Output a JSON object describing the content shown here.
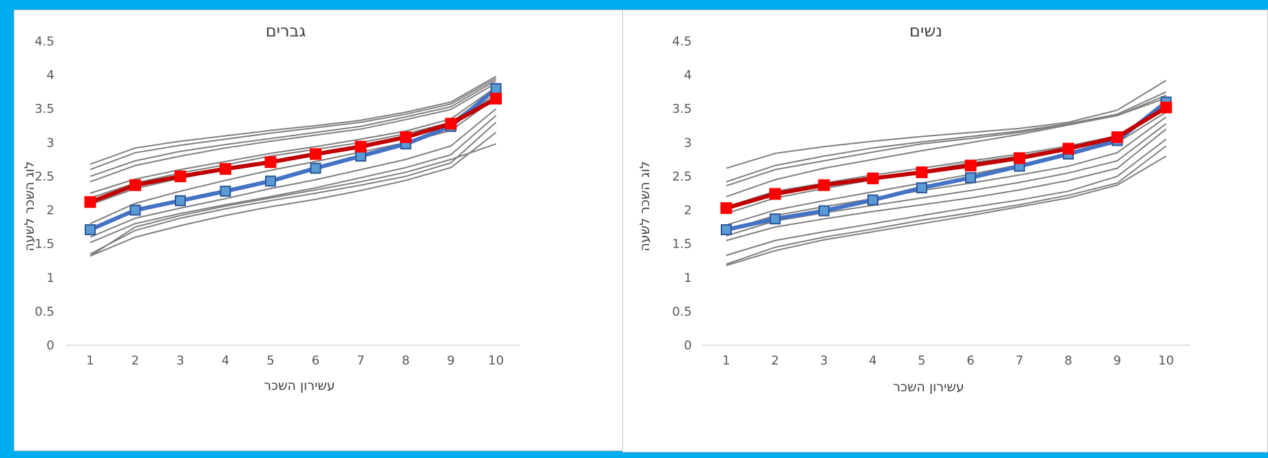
{
  "colors": {
    "background_frame": "#00AEEF",
    "panel_background": "#FFFFFF",
    "gray_lines": "#7F7F7F",
    "red_series": "#C00000",
    "red_marker": "#FF0000",
    "blue_series": "#4472C4",
    "blue_marker": "#5B9BD5"
  },
  "chart_data": [
    {
      "type": "line",
      "title": "גברים",
      "xlabel": "עשירון השכר",
      "ylabel": "לוג השכר לשעה",
      "x": [
        1,
        2,
        3,
        4,
        5,
        6,
        7,
        8,
        9,
        10
      ],
      "ylim": [
        0,
        4.5
      ],
      "yticks": [
        "0",
        "0.5",
        "1",
        "1.5",
        "2",
        "2.5",
        "3",
        "3.5",
        "4",
        "4.5"
      ],
      "xticks": [
        "1",
        "2",
        "3",
        "4",
        "5",
        "6",
        "7",
        "8",
        "9",
        "10"
      ],
      "grid": false,
      "legend": "none",
      "background_series": [
        [
          2.68,
          2.92,
          3.02,
          3.1,
          3.18,
          3.25,
          3.33,
          3.45,
          3.6,
          3.98
        ],
        [
          2.6,
          2.85,
          2.96,
          3.05,
          3.14,
          3.22,
          3.3,
          3.42,
          3.57,
          3.95
        ],
        [
          2.5,
          2.73,
          2.87,
          2.97,
          3.06,
          3.15,
          3.24,
          3.38,
          3.53,
          3.92
        ],
        [
          2.42,
          2.66,
          2.8,
          2.92,
          3.02,
          3.11,
          3.2,
          3.34,
          3.49,
          3.88
        ],
        [
          2.25,
          2.46,
          2.6,
          2.72,
          2.84,
          2.94,
          3.05,
          3.17,
          3.35,
          3.82
        ],
        [
          2.18,
          2.4,
          2.55,
          2.67,
          2.8,
          2.9,
          3.0,
          3.13,
          3.3,
          3.78
        ],
        [
          2.08,
          2.32,
          2.47,
          2.6,
          2.72,
          2.83,
          2.95,
          3.08,
          3.25,
          3.72
        ],
        [
          1.8,
          2.1,
          2.28,
          2.44,
          2.59,
          2.72,
          2.86,
          3.0,
          3.18,
          3.66
        ],
        [
          1.6,
          1.88,
          2.03,
          2.17,
          2.32,
          2.45,
          2.6,
          2.75,
          2.95,
          3.5
        ],
        [
          1.52,
          1.8,
          1.95,
          2.08,
          2.2,
          2.33,
          2.48,
          2.63,
          2.82,
          3.4
        ],
        [
          1.35,
          1.7,
          1.88,
          2.02,
          2.14,
          2.25,
          2.37,
          2.5,
          2.7,
          3.3
        ],
        [
          1.32,
          1.6,
          1.77,
          1.92,
          2.05,
          2.16,
          2.29,
          2.44,
          2.63,
          3.15
        ],
        [
          1.32,
          1.75,
          1.92,
          2.06,
          2.18,
          2.3,
          2.42,
          2.56,
          2.75,
          2.98
        ]
      ],
      "series": [
        {
          "color": "#4472C4",
          "marker": "#5B9BD5",
          "values": [
            1.71,
            2.0,
            2.14,
            2.28,
            2.43,
            2.62,
            2.8,
            2.98,
            3.24,
            3.8
          ]
        },
        {
          "color": "#C00000",
          "marker": "#FF0000",
          "values": [
            2.12,
            2.37,
            2.5,
            2.61,
            2.71,
            2.83,
            2.94,
            3.08,
            3.28,
            3.65
          ]
        }
      ]
    },
    {
      "type": "line",
      "title": "נשים",
      "xlabel": "עשירון השכר",
      "ylabel": "לוג השכר לשעה",
      "x": [
        1,
        2,
        3,
        4,
        5,
        6,
        7,
        8,
        9,
        10
      ],
      "ylim": [
        0,
        4.5
      ],
      "yticks": [
        "0",
        "0.5",
        "1",
        "1.5",
        "2",
        "2.5",
        "3",
        "3.5",
        "4",
        "4.5"
      ],
      "xticks": [
        "1",
        "2",
        "3",
        "4",
        "5",
        "6",
        "7",
        "8",
        "9",
        "10"
      ],
      "grid": false,
      "legend": "none",
      "background_series": [
        [
          2.62,
          2.84,
          2.94,
          3.02,
          3.09,
          3.15,
          3.21,
          3.3,
          3.48,
          3.92
        ],
        [
          2.42,
          2.66,
          2.8,
          2.92,
          3.01,
          3.09,
          3.17,
          3.28,
          3.42,
          3.75
        ],
        [
          2.36,
          2.6,
          2.73,
          2.86,
          2.98,
          3.06,
          3.15,
          3.27,
          3.4,
          3.7
        ],
        [
          2.2,
          2.45,
          2.62,
          2.75,
          2.88,
          3.0,
          3.12,
          3.26,
          3.4,
          3.66
        ],
        [
          2.05,
          2.28,
          2.4,
          2.52,
          2.62,
          2.73,
          2.83,
          2.95,
          3.1,
          3.55
        ],
        [
          1.95,
          2.18,
          2.32,
          2.45,
          2.58,
          2.7,
          2.8,
          2.93,
          3.08,
          3.5
        ],
        [
          1.78,
          2.0,
          2.14,
          2.27,
          2.4,
          2.53,
          2.67,
          2.82,
          3.0,
          3.45
        ],
        [
          1.7,
          1.92,
          2.05,
          2.17,
          2.29,
          2.4,
          2.52,
          2.65,
          2.85,
          3.38
        ],
        [
          1.62,
          1.84,
          1.96,
          2.07,
          2.18,
          2.29,
          2.41,
          2.55,
          2.73,
          3.28
        ],
        [
          1.55,
          1.75,
          1.87,
          1.98,
          2.08,
          2.18,
          2.3,
          2.44,
          2.62,
          3.2
        ],
        [
          1.33,
          1.55,
          1.68,
          1.8,
          1.92,
          2.04,
          2.15,
          2.28,
          2.5,
          3.05
        ],
        [
          1.2,
          1.45,
          1.6,
          1.72,
          1.85,
          1.96,
          2.08,
          2.22,
          2.4,
          2.95
        ],
        [
          1.18,
          1.4,
          1.56,
          1.68,
          1.8,
          1.92,
          2.05,
          2.18,
          2.37,
          2.8
        ]
      ],
      "series": [
        {
          "color": "#4472C4",
          "marker": "#5B9BD5",
          "values": [
            1.71,
            1.87,
            1.99,
            2.15,
            2.33,
            2.48,
            2.65,
            2.83,
            3.03,
            3.6
          ]
        },
        {
          "color": "#C00000",
          "marker": "#FF0000",
          "values": [
            2.03,
            2.24,
            2.37,
            2.47,
            2.56,
            2.66,
            2.77,
            2.91,
            3.08,
            3.52
          ]
        }
      ]
    }
  ]
}
